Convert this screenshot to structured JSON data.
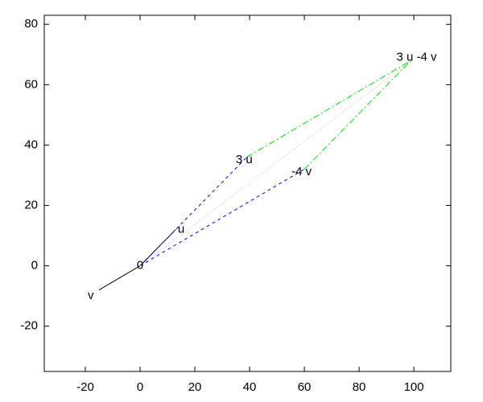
{
  "chart_data": {
    "type": "line",
    "xlim": [
      -35,
      113.5
    ],
    "ylim": [
      -35,
      83
    ],
    "xticks": [
      -20,
      0,
      20,
      40,
      60,
      80,
      100
    ],
    "yticks": [
      -20,
      0,
      20,
      40,
      60,
      80
    ],
    "grid": false,
    "series": [
      {
        "color": "#000000",
        "style": "solid",
        "x": [
          0,
          -15
        ],
        "values": [
          0,
          -8
        ]
      },
      {
        "color": "#000000",
        "style": "solid",
        "x": [
          0,
          13
        ],
        "values": [
          0,
          12
        ]
      },
      {
        "color": "#0000ff",
        "style": "dashed",
        "x": [
          0,
          39
        ],
        "values": [
          0,
          36
        ]
      },
      {
        "color": "#0000ff",
        "style": "dashed",
        "x": [
          0,
          60
        ],
        "values": [
          0,
          32
        ]
      },
      {
        "color": "#00dd00",
        "style": "dashdot",
        "x": [
          39,
          99
        ],
        "values": [
          36,
          68
        ]
      },
      {
        "color": "#00dd00",
        "style": "dashdot",
        "x": [
          60,
          99
        ],
        "values": [
          32,
          68
        ]
      },
      {
        "color": "#e0a0c0",
        "style": "dotted",
        "x": [
          0,
          99
        ],
        "values": [
          0,
          68
        ]
      }
    ],
    "annotations": [
      {
        "text": "0",
        "x": 0,
        "y": 0
      },
      {
        "text": "u",
        "x": 15,
        "y": 12
      },
      {
        "text": "v",
        "x": -18,
        "y": -10
      },
      {
        "text": "3 u",
        "x": 38,
        "y": 35
      },
      {
        "text": "-4 v",
        "x": 59,
        "y": 31
      },
      {
        "text": "3 u -4 v",
        "x": 101,
        "y": 69
      }
    ]
  }
}
